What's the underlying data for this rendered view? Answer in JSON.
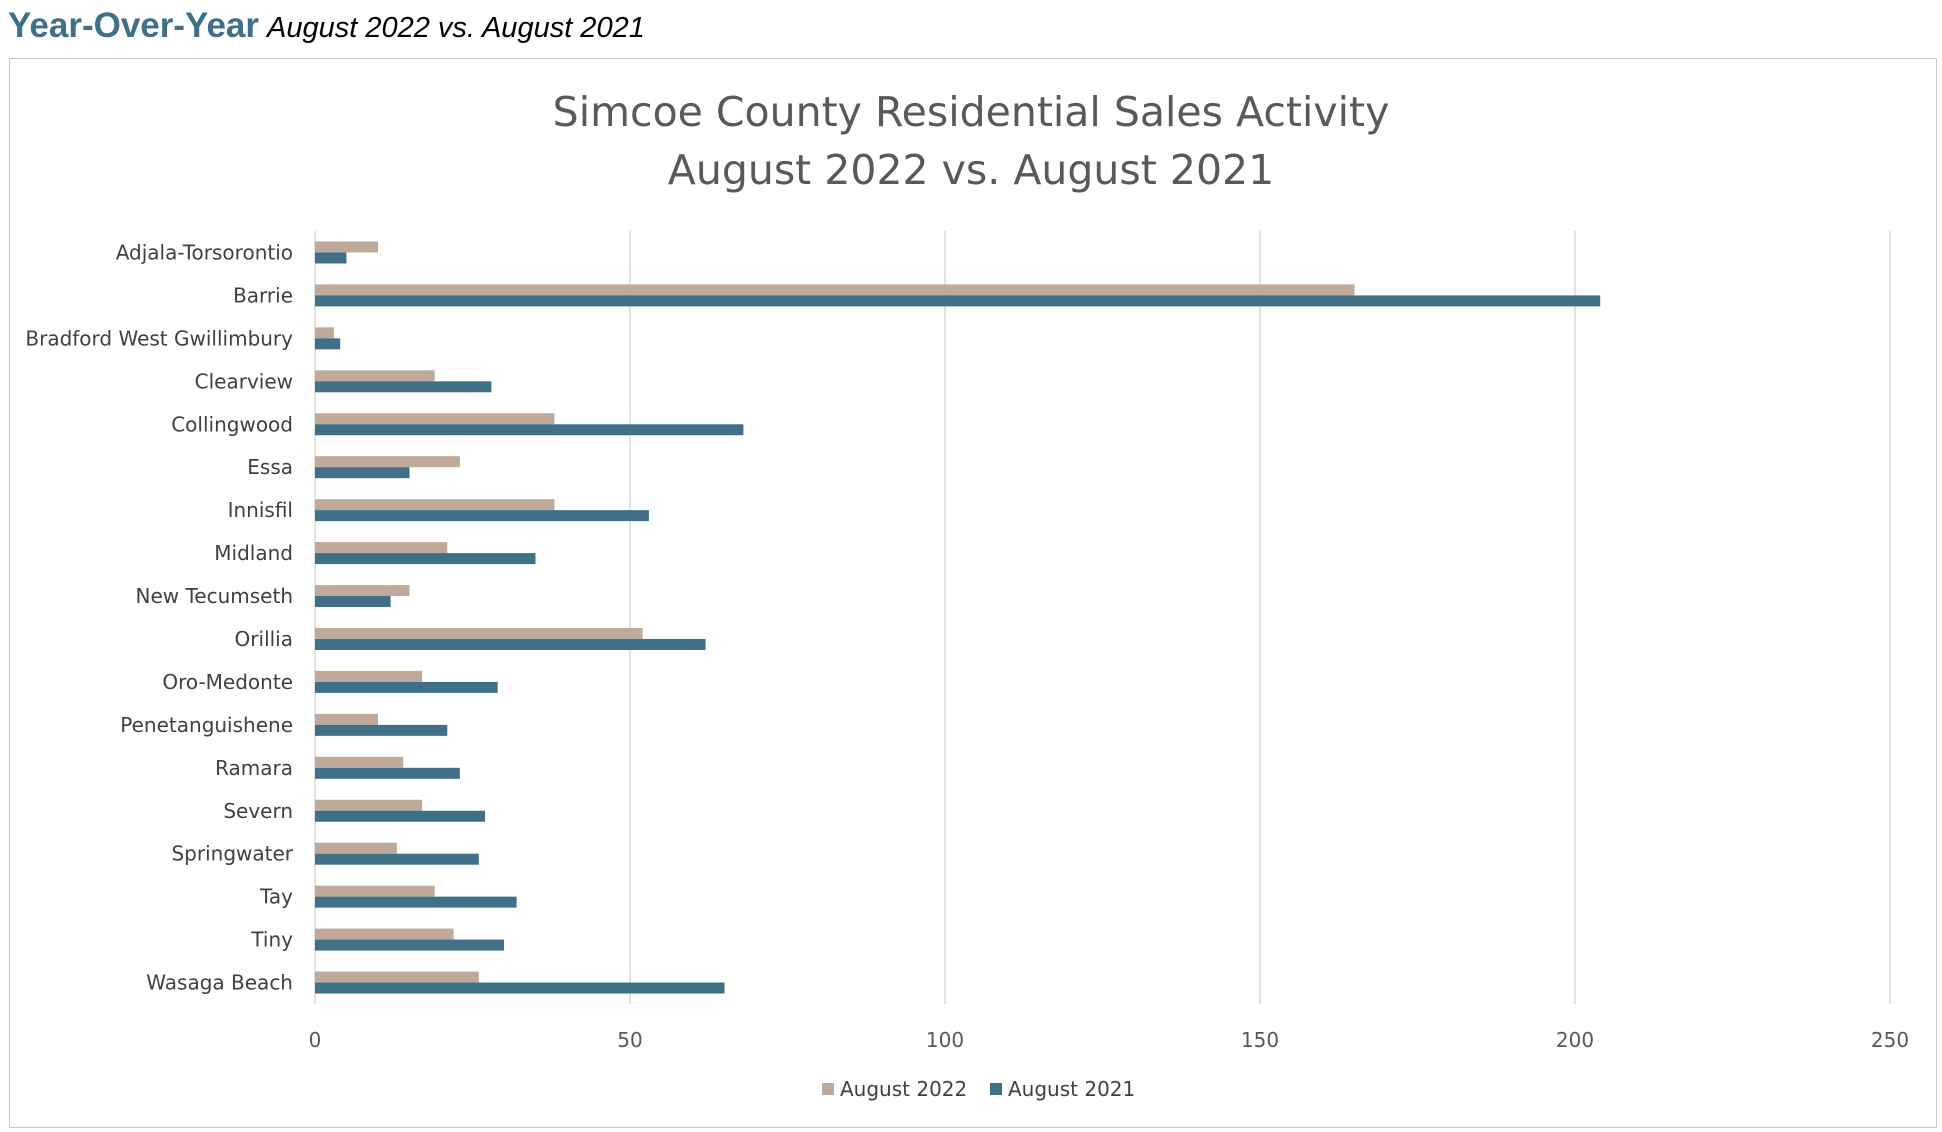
{
  "header": {
    "title": "Year-Over-Year",
    "subtitle": "August 2022 vs. August 2021"
  },
  "chart_data": {
    "type": "bar",
    "orientation": "horizontal",
    "title_lines": [
      "Simcoe County Residential Sales Activity",
      "August 2022 vs. August 2021"
    ],
    "categories": [
      "Adjala-Torsorontio",
      "Barrie",
      "Bradford West Gwillimbury",
      "Clearview",
      "Collingwood",
      "Essa",
      "Innisfil",
      "Midland",
      "New Tecumseth",
      "Orillia",
      "Oro-Medonte",
      "Penetanguishene",
      "Ramara",
      "Severn",
      "Springwater",
      "Tay",
      "Tiny",
      "Wasaga Beach"
    ],
    "series": [
      {
        "name": "August 2022",
        "color": "#bfa99a",
        "values": [
          10,
          165,
          3,
          19,
          38,
          23,
          38,
          21,
          15,
          52,
          17,
          10,
          14,
          17,
          13,
          19,
          22,
          26
        ]
      },
      {
        "name": "August 2021",
        "color": "#3f7087",
        "values": [
          5,
          204,
          4,
          28,
          68,
          15,
          53,
          35,
          12,
          62,
          29,
          21,
          23,
          27,
          26,
          32,
          30,
          65
        ]
      }
    ],
    "xlim": [
      0,
      250
    ],
    "xticks": [
      0,
      50,
      100,
      150,
      200,
      250
    ],
    "grid": true,
    "legend": "bottom"
  }
}
